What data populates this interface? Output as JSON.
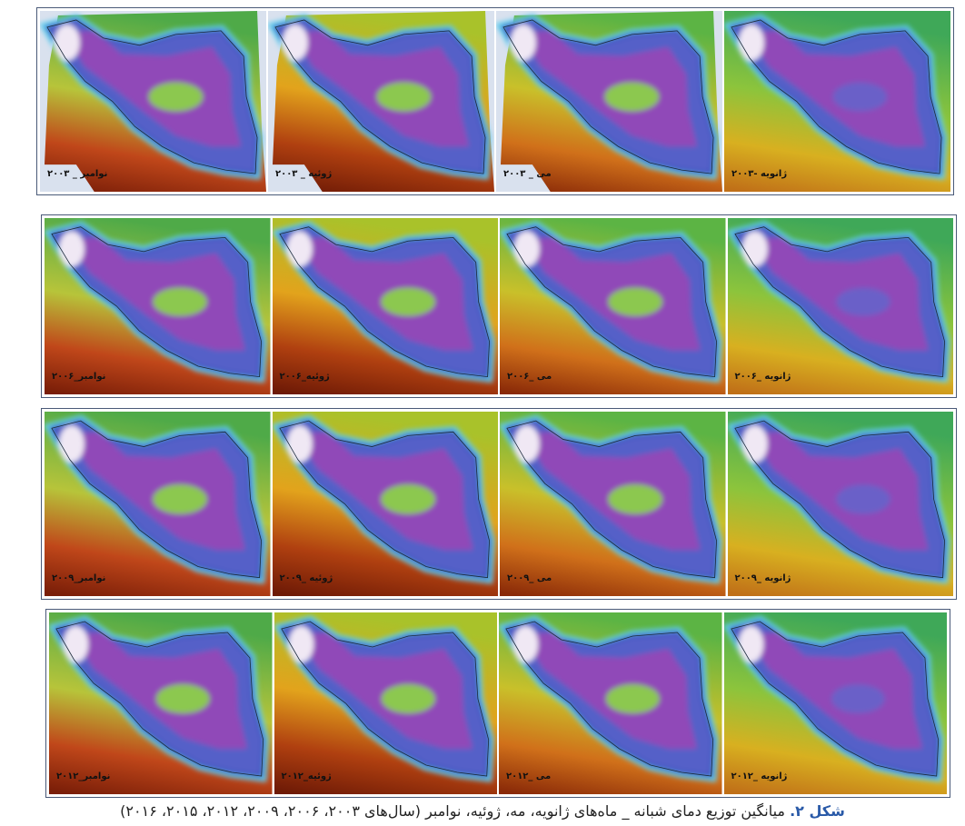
{
  "rows": [
    {
      "panels": [
        {
          "label": "نوامبر _ ۲۰۰۳"
        },
        {
          "label": "ژوئیه _ ۲۰۰۳"
        },
        {
          "label": "می _ ۲۰۰۳"
        },
        {
          "label": "ژانویه -۲۰۰۳"
        }
      ]
    },
    {
      "panels": [
        {
          "label": "نوامبر_۲۰۰۶"
        },
        {
          "label": "ژوئیه_۲۰۰۶"
        },
        {
          "label": "می _۲۰۰۶"
        },
        {
          "label": "ژانویه _۲۰۰۶"
        }
      ]
    },
    {
      "panels": [
        {
          "label": "نوامبر_۲۰۰۹"
        },
        {
          "label": "ژوئیه _۲۰۰۹"
        },
        {
          "label": "می _۲۰۰۹"
        },
        {
          "label": "ژانویه _۲۰۰۹"
        }
      ]
    },
    {
      "panels": [
        {
          "label": "نوامبر_۲۰۱۲"
        },
        {
          "label": "ژوئیه_۲۰۱۲"
        },
        {
          "label": "می _۲۰۱۲"
        },
        {
          "label": "ژانویه _۲۰۱۲"
        }
      ]
    }
  ],
  "caption": {
    "label": "شکل ۲.",
    "text": "میانگین توزیع دمای شبانه _ ماه‌های ژانویه، مه، ژوئیه، نوامبر (سال‌های ۲۰۰۳، ۲۰۰۶، ۲۰۰۹، ۲۰۱۲، ۲۰۱۵، ۲۰۱۶)"
  }
}
